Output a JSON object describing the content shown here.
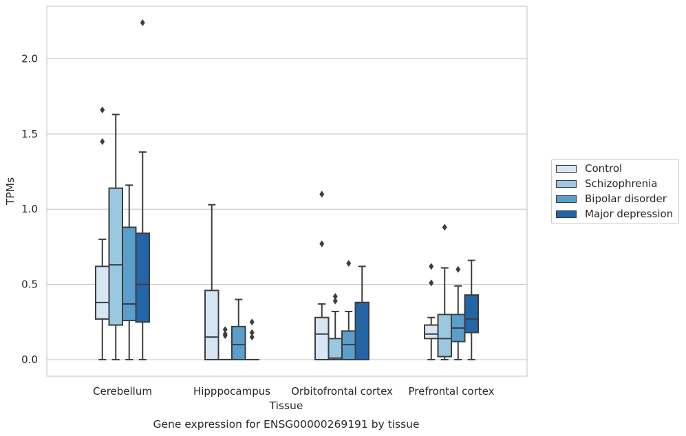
{
  "chart_data": {
    "type": "box",
    "title": "Gene expression for ENSG00000269191 by tissue",
    "xlabel": "Tissue",
    "ylabel": "TPMs",
    "ylim": [
      -0.11,
      2.35
    ],
    "yticks": [
      0.0,
      0.5,
      1.0,
      1.5,
      2.0
    ],
    "ytick_labels": [
      "0.0",
      "0.5",
      "1.0",
      "1.5",
      "2.0"
    ],
    "grid": "horizontal",
    "legend_position": "right",
    "categories": [
      "Cerebellum",
      "Hipppocampus",
      "Orbitofrontal cortex",
      "Prefrontal cortex"
    ],
    "series": [
      {
        "name": "Control",
        "color": "#d6e6f4",
        "boxes": [
          {
            "whisker_low": 0.0,
            "q1": 0.27,
            "median": 0.38,
            "q3": 0.62,
            "whisker_high": 0.8,
            "outliers": [
              1.45,
              1.66
            ]
          },
          {
            "whisker_low": 0.0,
            "q1": 0.0,
            "median": 0.15,
            "q3": 0.46,
            "whisker_high": 1.03,
            "outliers": []
          },
          {
            "whisker_low": 0.0,
            "q1": 0.0,
            "median": 0.17,
            "q3": 0.28,
            "whisker_high": 0.37,
            "outliers": [
              0.77,
              1.1
            ]
          },
          {
            "whisker_low": 0.0,
            "q1": 0.14,
            "median": 0.17,
            "q3": 0.23,
            "whisker_high": 0.28,
            "outliers": [
              0.51,
              0.62
            ]
          }
        ]
      },
      {
        "name": "Schizophrenia",
        "color": "#9ac8e0",
        "boxes": [
          {
            "whisker_low": 0.0,
            "q1": 0.23,
            "median": 0.63,
            "q3": 1.14,
            "whisker_high": 1.63,
            "outliers": []
          },
          {
            "whisker_low": 0.0,
            "q1": 0.0,
            "median": 0.0,
            "q3": 0.0,
            "whisker_high": 0.0,
            "outliers": [
              0.16,
              0.17,
              0.2
            ]
          },
          {
            "whisker_low": 0.0,
            "q1": 0.0,
            "median": 0.01,
            "q3": 0.14,
            "whisker_high": 0.32,
            "outliers": [
              0.39,
              0.42
            ]
          },
          {
            "whisker_low": 0.0,
            "q1": 0.02,
            "median": 0.14,
            "q3": 0.3,
            "whisker_high": 0.61,
            "outliers": [
              0.88
            ]
          }
        ]
      },
      {
        "name": "Bipolar disorder",
        "color": "#5a9ecb",
        "boxes": [
          {
            "whisker_low": 0.0,
            "q1": 0.26,
            "median": 0.37,
            "q3": 0.88,
            "whisker_high": 1.16,
            "outliers": []
          },
          {
            "whisker_low": 0.0,
            "q1": 0.0,
            "median": 0.1,
            "q3": 0.22,
            "whisker_high": 0.4,
            "outliers": []
          },
          {
            "whisker_low": 0.0,
            "q1": 0.0,
            "median": 0.1,
            "q3": 0.19,
            "whisker_high": 0.32,
            "outliers": [
              0.64
            ]
          },
          {
            "whisker_low": 0.0,
            "q1": 0.12,
            "median": 0.21,
            "q3": 0.3,
            "whisker_high": 0.49,
            "outliers": [
              0.6
            ]
          }
        ]
      },
      {
        "name": "Major depression",
        "color": "#2465a7",
        "boxes": [
          {
            "whisker_low": 0.0,
            "q1": 0.25,
            "median": 0.5,
            "q3": 0.84,
            "whisker_high": 1.38,
            "outliers": [
              2.24
            ]
          },
          {
            "whisker_low": 0.0,
            "q1": 0.0,
            "median": 0.0,
            "q3": 0.0,
            "whisker_high": 0.0,
            "outliers": [
              0.15,
              0.18,
              0.25
            ]
          },
          {
            "whisker_low": 0.0,
            "q1": 0.0,
            "median": 0.38,
            "q3": 0.38,
            "whisker_high": 0.62,
            "outliers": []
          },
          {
            "whisker_low": 0.0,
            "q1": 0.18,
            "median": 0.27,
            "q3": 0.43,
            "whisker_high": 0.66,
            "outliers": []
          }
        ]
      }
    ]
  }
}
